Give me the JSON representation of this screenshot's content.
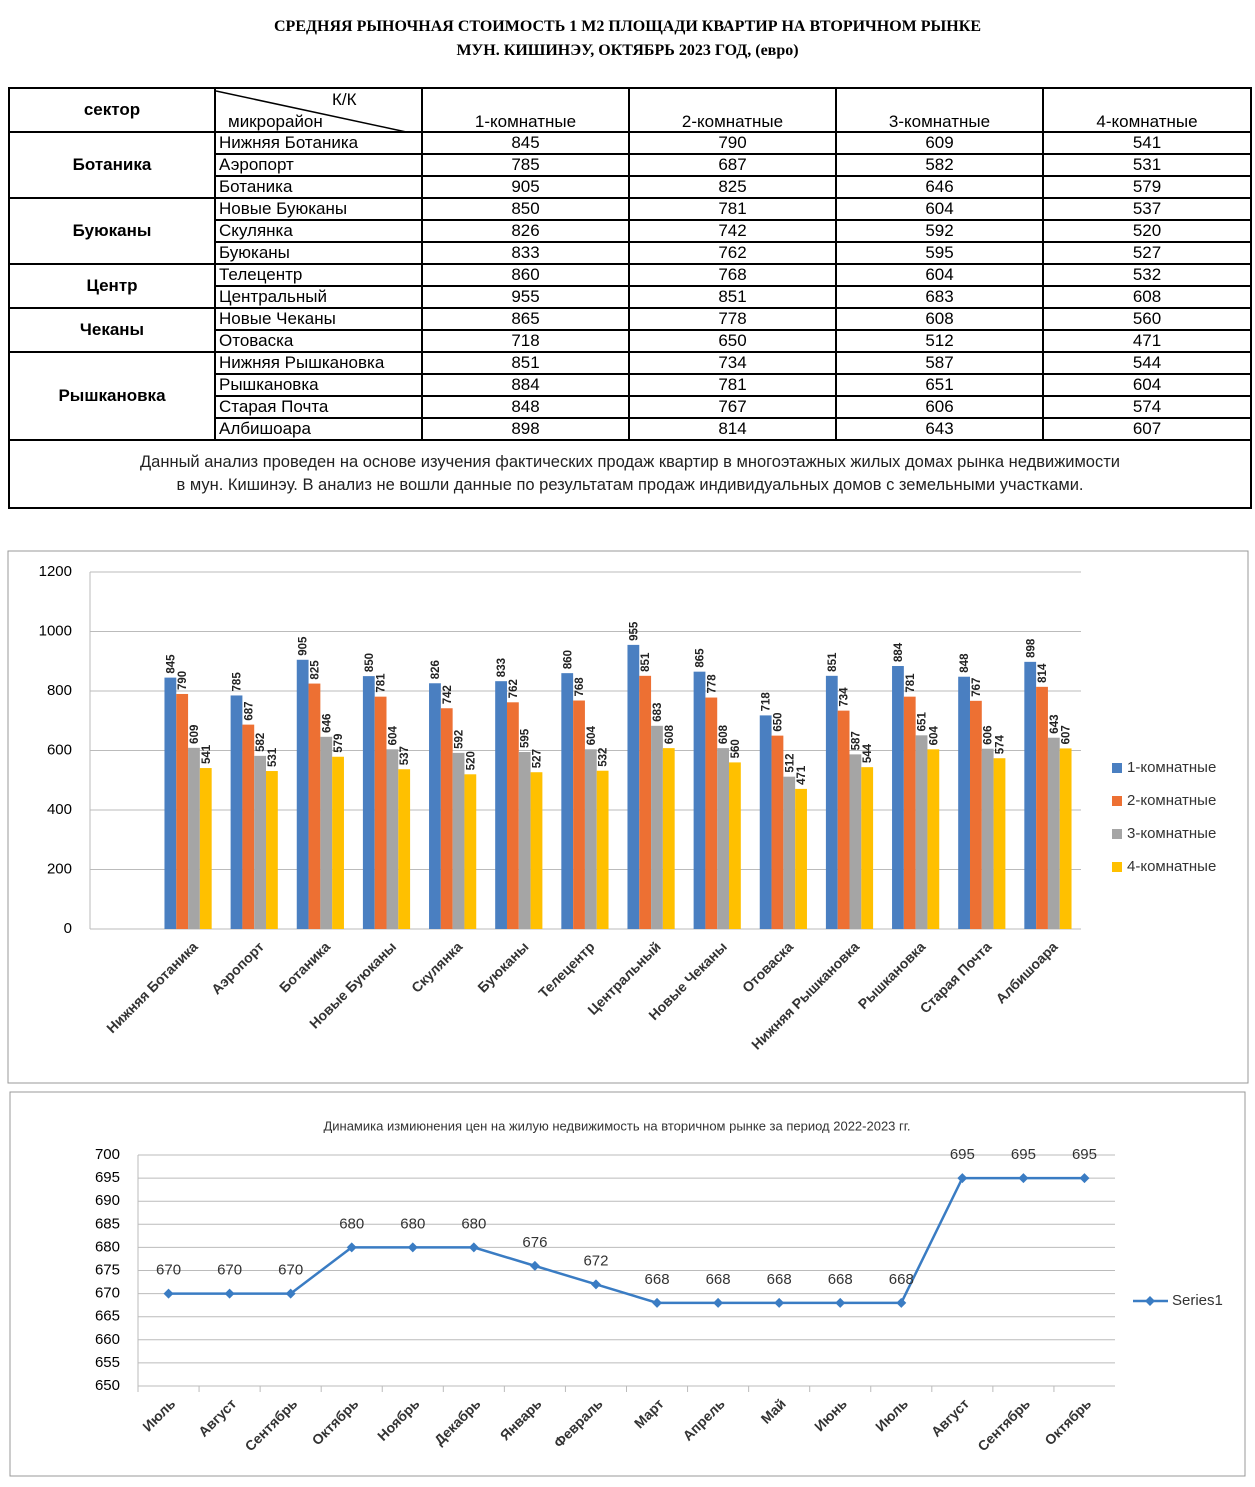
{
  "header": {
    "title_lines": [
      "СРЕДНЯЯ  РЫНОЧНАЯ  СТОИМОСТЬ  1 М2  ПЛОЩАДИ  КВАРТИР НА ВТОРИЧНОМ РЫНКЕ",
      "МУН.  КИШИНЭУ, ОКТЯБРЬ 2023 ГОД, (евро)"
    ]
  },
  "table": {
    "sector_header": "сектор",
    "corner_top": "К/К",
    "corner_bottom": "микрорайон",
    "columns": [
      "1-комнатные",
      "2-комнатные",
      "3-комнатные",
      "4-комнатные"
    ],
    "groups": [
      {
        "sector": "Ботаника",
        "rows": [
          {
            "district": "Нижняя Ботаника",
            "values": [
              845,
              790,
              609,
              541
            ]
          },
          {
            "district": "Аэропорт",
            "values": [
              785,
              687,
              582,
              531
            ]
          },
          {
            "district": "Ботаника",
            "values": [
              905,
              825,
              646,
              579
            ]
          }
        ]
      },
      {
        "sector": "Буюканы",
        "rows": [
          {
            "district": "Новые Буюканы",
            "values": [
              850,
              781,
              604,
              537
            ]
          },
          {
            "district": "Скулянка",
            "values": [
              826,
              742,
              592,
              520
            ]
          },
          {
            "district": "Буюканы",
            "values": [
              833,
              762,
              595,
              527
            ]
          }
        ]
      },
      {
        "sector": "Центр",
        "rows": [
          {
            "district": "Телецентр",
            "values": [
              860,
              768,
              604,
              532
            ]
          },
          {
            "district": "Центральный",
            "values": [
              955,
              851,
              683,
              608
            ]
          }
        ]
      },
      {
        "sector": "Чеканы",
        "rows": [
          {
            "district": "Новые Чеканы",
            "values": [
              865,
              778,
              608,
              560
            ]
          },
          {
            "district": "Отоваска",
            "values": [
              718,
              650,
              512,
              471
            ]
          }
        ]
      },
      {
        "sector": "Рышкановка",
        "rows": [
          {
            "district": "Нижняя Рышкановка",
            "values": [
              851,
              734,
              587,
              544
            ]
          },
          {
            "district": "Рышкановка",
            "values": [
              884,
              781,
              651,
              604
            ]
          },
          {
            "district": "Старая Почта",
            "values": [
              848,
              767,
              606,
              574
            ]
          },
          {
            "district": "Албишоара",
            "values": [
              898,
              814,
              643,
              607
            ]
          }
        ]
      }
    ],
    "note_lines": [
      "Данный анализ проведен на основе изучения фактических продаж квартир в многоэтажных жилых домах рынка недвижимости",
      "в мун. Кишинэу. В анализ не вошли данные по результатам  продаж индивидуальных домов с земельными участками."
    ]
  },
  "chart_data": [
    {
      "type": "bar",
      "categories": [
        "Нижняя Ботаника",
        "Аэропорт",
        "Ботаника",
        "Новые Буюканы",
        "Скулянка",
        "Буюканы",
        "Телецентр",
        "Центральный",
        "Новые Чеканы",
        "Отоваска",
        "Нижняя Рышкановка",
        "Рышкановка",
        "Старая Почта",
        "Албишоара"
      ],
      "series": [
        {
          "name": "1-комнатные",
          "color": "#4a7fc1",
          "values": [
            845,
            785,
            905,
            850,
            826,
            833,
            860,
            955,
            865,
            718,
            851,
            884,
            848,
            898
          ]
        },
        {
          "name": "2-комнатные",
          "color": "#ed7033",
          "values": [
            790,
            687,
            825,
            781,
            742,
            762,
            768,
            851,
            778,
            650,
            734,
            781,
            767,
            814
          ]
        },
        {
          "name": "3-комнатные",
          "color": "#a5a5a5",
          "values": [
            609,
            582,
            646,
            604,
            592,
            595,
            604,
            683,
            608,
            512,
            587,
            651,
            606,
            643
          ]
        },
        {
          "name": "4-комнатные",
          "color": "#ffc000",
          "values": [
            541,
            531,
            579,
            537,
            520,
            527,
            532,
            608,
            560,
            471,
            544,
            604,
            574,
            607
          ]
        }
      ],
      "ylim": [
        0,
        1200
      ],
      "yticks": [
        0,
        200,
        400,
        600,
        800,
        1000,
        1200
      ],
      "grid": true,
      "legend": "right"
    },
    {
      "type": "line",
      "title": "Динамика измиюнения цен на жилую недвижимость на вторичном рынке за период 2022-2023 гг.",
      "categories": [
        "Июль",
        "Август",
        "Сентябрь",
        "Октябрь",
        "Ноябрь",
        "Декабрь",
        "Январь",
        "Февраль",
        "Март",
        "Апрель",
        "Май",
        "Июнь",
        "Июль",
        "Август",
        "Сентябрь",
        "Октябрь"
      ],
      "series": [
        {
          "name": "Series1",
          "color": "#3a7cc3",
          "values": [
            670,
            670,
            670,
            680,
            680,
            680,
            676,
            672,
            668,
            668,
            668,
            668,
            668,
            695,
            695,
            695
          ]
        }
      ],
      "ylim": [
        650,
        700
      ],
      "yticks": [
        650,
        655,
        660,
        665,
        670,
        675,
        680,
        685,
        690,
        695,
        700
      ],
      "grid": true,
      "legend": "right"
    }
  ]
}
